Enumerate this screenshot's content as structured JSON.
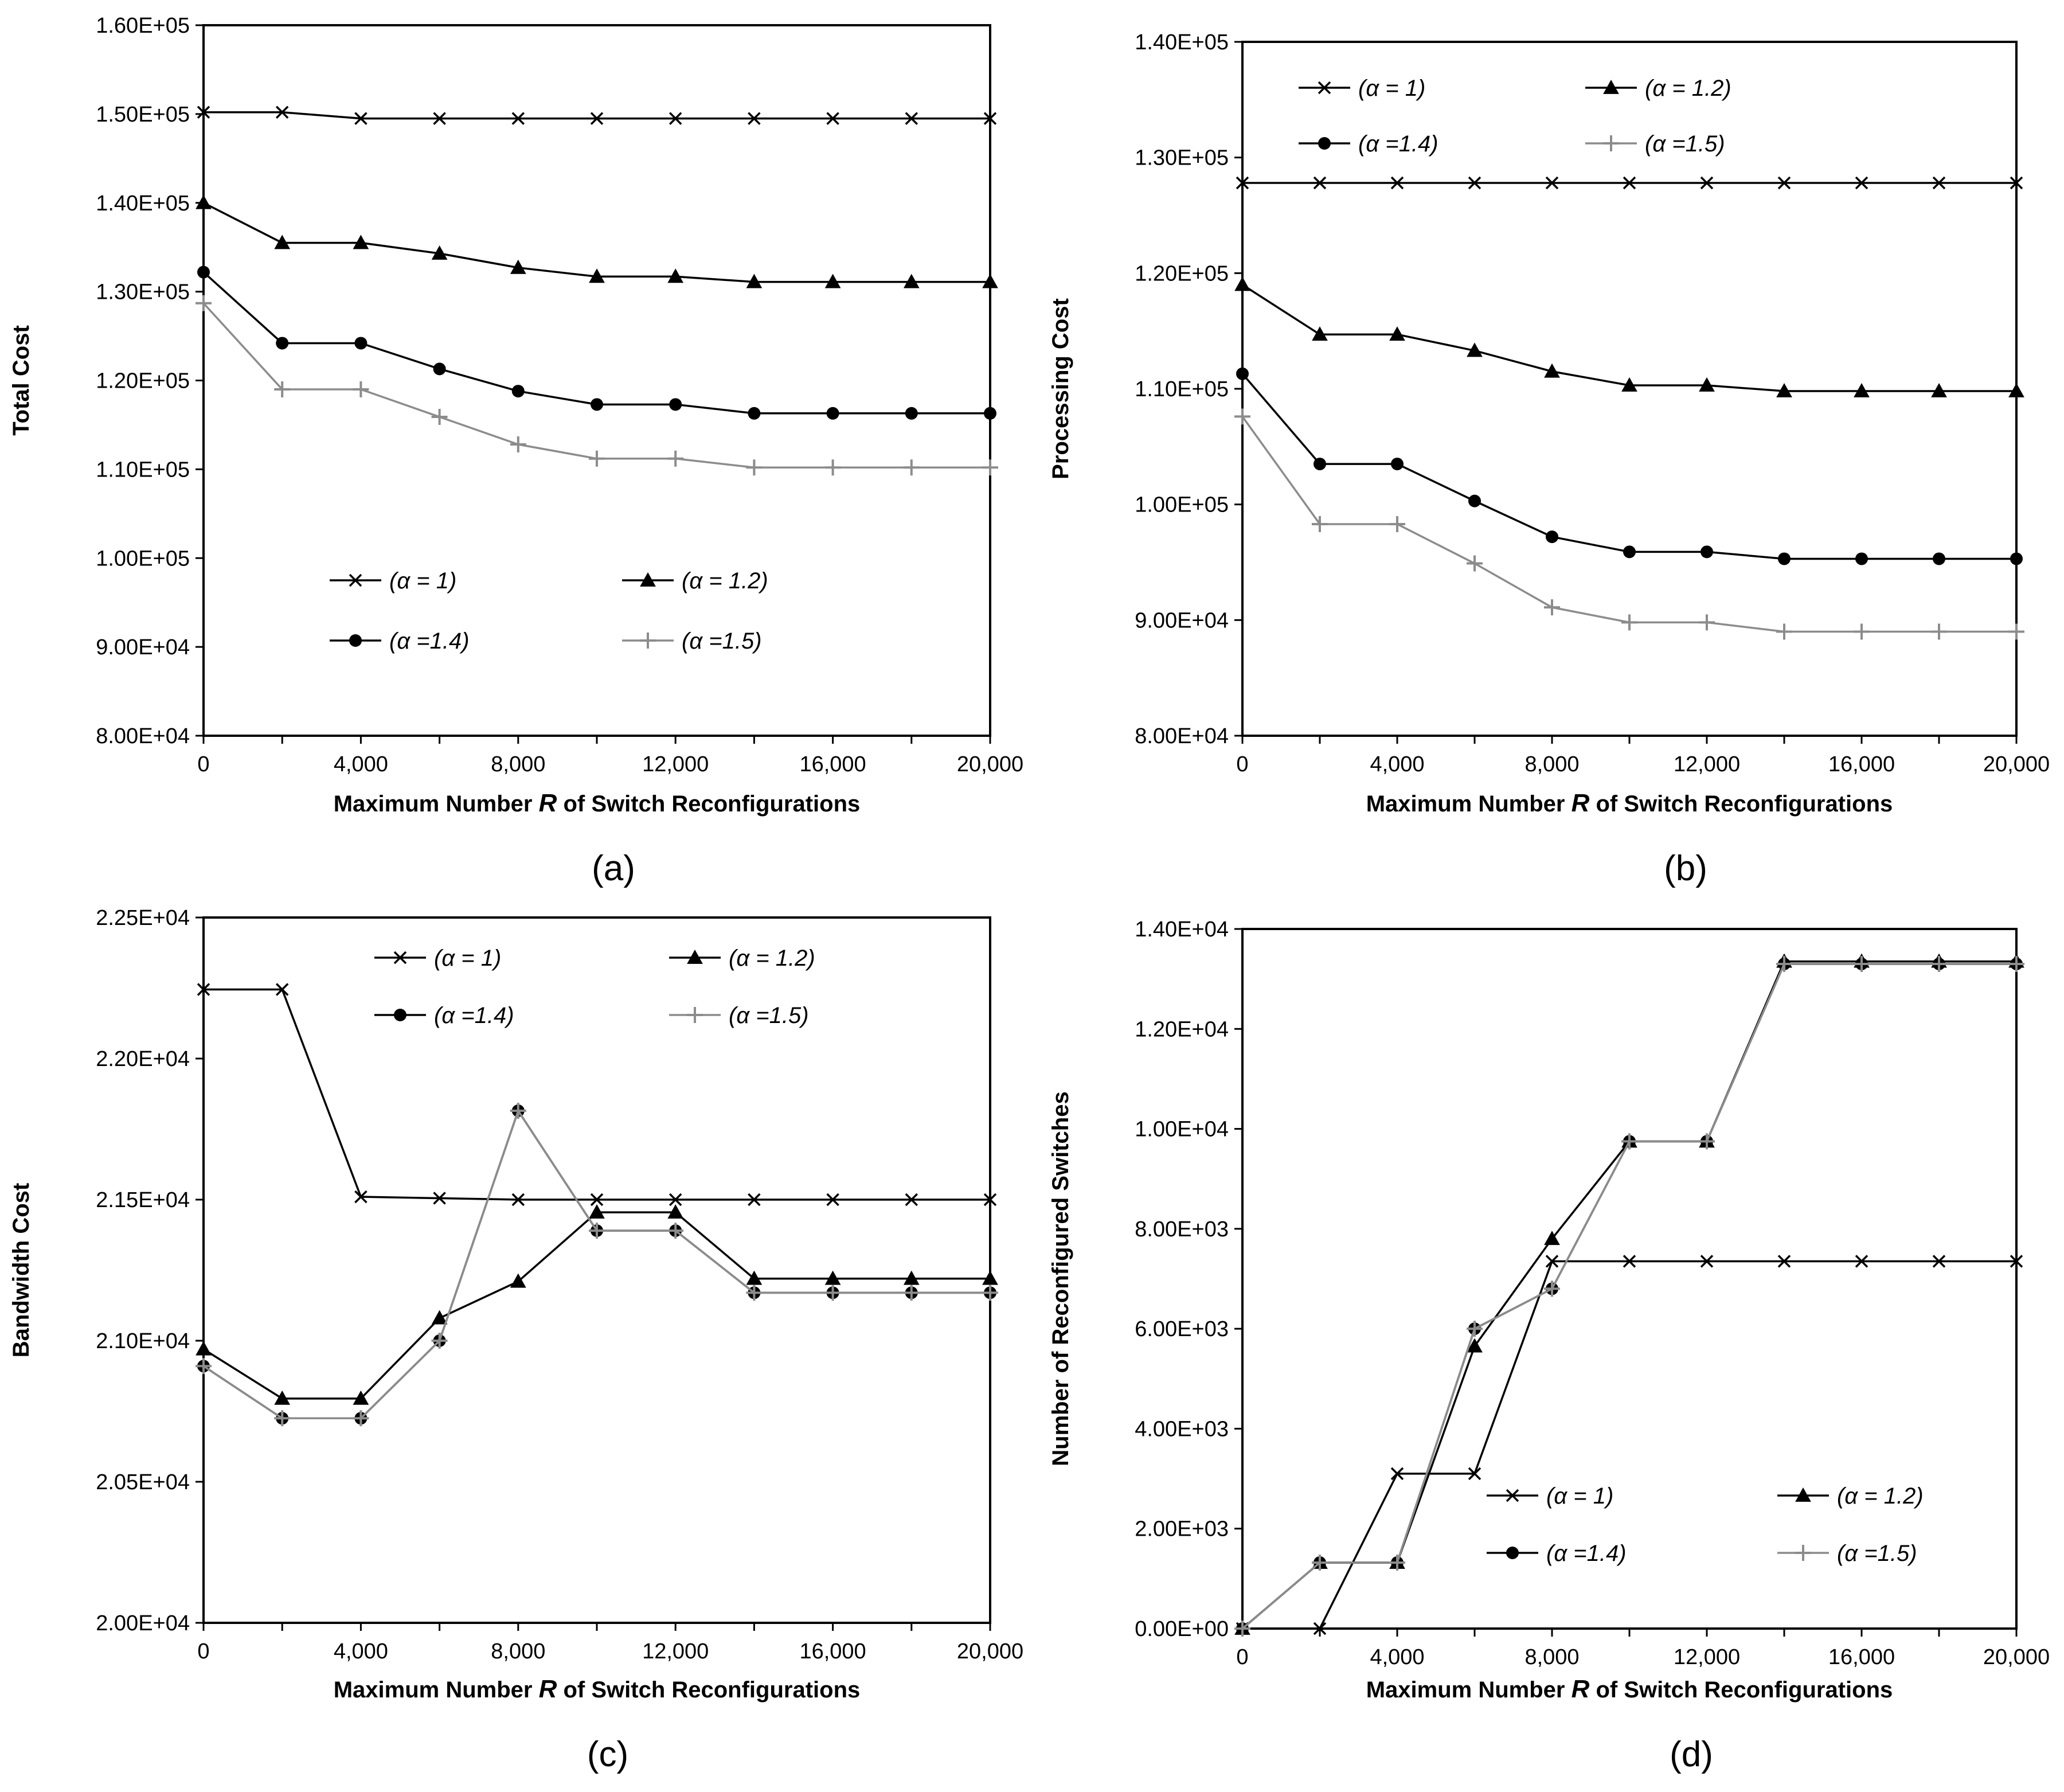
{
  "chart_data": [
    {
      "type": "line",
      "panel_label": "(a)",
      "xlabel_parts": [
        "Maximum Number ",
        "R",
        " of Switch Reconfigurations"
      ],
      "ylabel": "Total Cost",
      "x": [
        0,
        2000,
        4000,
        6000,
        8000,
        10000,
        12000,
        14000,
        16000,
        18000,
        20000
      ],
      "xticks": [
        0,
        4000,
        8000,
        12000,
        16000,
        20000
      ],
      "xtick_labels": [
        "0",
        "4,000",
        "8,000",
        "12,000",
        "16,000",
        "20,000"
      ],
      "xlim": [
        0,
        20000
      ],
      "ylim": [
        80000,
        160000
      ],
      "yticks": [
        80000,
        90000,
        100000,
        110000,
        120000,
        130000,
        140000,
        150000,
        160000
      ],
      "ytick_labels": [
        "8.00E+04",
        "9.00E+04",
        "1.00E+05",
        "1.10E+05",
        "1.20E+05",
        "1.30E+05",
        "1.40E+05",
        "1.50E+05",
        "1.60E+05"
      ],
      "legend_position": "lower-middle",
      "series": [
        {
          "name": "(α = 1)",
          "marker": "x",
          "color": "#000000",
          "values": [
            150200,
            150200,
            149500,
            149500,
            149500,
            149500,
            149500,
            149500,
            149500,
            149500,
            149500
          ]
        },
        {
          "name": "(α = 1.2)",
          "marker": "triangle",
          "color": "#000000",
          "values": [
            140000,
            135500,
            135500,
            134300,
            132700,
            131700,
            131700,
            131100,
            131100,
            131100,
            131100
          ]
        },
        {
          "name": "(α =1.4)",
          "marker": "circle",
          "color": "#000000",
          "values": [
            132200,
            124200,
            124200,
            121300,
            118800,
            117300,
            117300,
            116300,
            116300,
            116300,
            116300
          ]
        },
        {
          "name": "(α =1.5)",
          "marker": "plus",
          "color": "#8c8c8c",
          "values": [
            128700,
            119000,
            119000,
            115900,
            112800,
            111200,
            111200,
            110200,
            110200,
            110200,
            110200
          ]
        }
      ]
    },
    {
      "type": "line",
      "panel_label": "(b)",
      "xlabel_parts": [
        "Maximum Number ",
        "R",
        " of Switch Reconfigurations"
      ],
      "ylabel": "Processing Cost",
      "x": [
        0,
        2000,
        4000,
        6000,
        8000,
        10000,
        12000,
        14000,
        16000,
        18000,
        20000
      ],
      "xticks": [
        0,
        4000,
        8000,
        12000,
        16000,
        20000
      ],
      "xtick_labels": [
        "0",
        "4,000",
        "8,000",
        "12,000",
        "16,000",
        "20,000"
      ],
      "xlim": [
        0,
        20000
      ],
      "ylim": [
        80000,
        140000
      ],
      "yticks": [
        80000,
        90000,
        100000,
        110000,
        120000,
        130000,
        140000
      ],
      "ytick_labels": [
        "8.00E+04",
        "9.00E+04",
        "1.00E+05",
        "1.10E+05",
        "1.20E+05",
        "1.30E+05",
        "1.40E+05"
      ],
      "legend_position": "top",
      "series": [
        {
          "name": "(α = 1)",
          "marker": "x",
          "color": "#000000",
          "values": [
            127800,
            127800,
            127800,
            127800,
            127800,
            127800,
            127800,
            127800,
            127800,
            127800,
            127800
          ]
        },
        {
          "name": "(α = 1.2)",
          "marker": "triangle",
          "color": "#000000",
          "values": [
            119000,
            114700,
            114700,
            113300,
            111500,
            110300,
            110300,
            109800,
            109800,
            109800,
            109800
          ]
        },
        {
          "name": "(α =1.4)",
          "marker": "circle",
          "color": "#000000",
          "values": [
            111300,
            103500,
            103500,
            100300,
            97200,
            95900,
            95900,
            95300,
            95300,
            95300,
            95300
          ]
        },
        {
          "name": "(α =1.5)",
          "marker": "plus",
          "color": "#8c8c8c",
          "values": [
            107600,
            98300,
            98300,
            94900,
            91100,
            89800,
            89800,
            89000,
            89000,
            89000,
            89000
          ]
        }
      ]
    },
    {
      "type": "line",
      "panel_label": "(c)",
      "xlabel_parts": [
        "Maximum Number ",
        "R",
        " of Switch Reconfigurations"
      ],
      "ylabel": "Bandwidth Cost",
      "x": [
        0,
        2000,
        4000,
        6000,
        8000,
        10000,
        12000,
        14000,
        16000,
        18000,
        20000
      ],
      "xticks": [
        0,
        4000,
        8000,
        12000,
        16000,
        20000
      ],
      "xtick_labels": [
        "0",
        "4,000",
        "8,000",
        "12,000",
        "16,000",
        "20,000"
      ],
      "xlim": [
        0,
        20000
      ],
      "ylim": [
        20000,
        22500
      ],
      "yticks": [
        20000,
        20500,
        21000,
        21500,
        22000,
        22500
      ],
      "ytick_labels": [
        "2.00E+04",
        "2.05E+04",
        "2.10E+04",
        "2.15E+04",
        "2.20E+04",
        "2.25E+04"
      ],
      "legend_position": "top",
      "series": [
        {
          "name": "(α = 1)",
          "marker": "x",
          "color": "#000000",
          "values": [
            22245,
            22245,
            21510,
            21505,
            21500,
            21500,
            21500,
            21500,
            21500,
            21500,
            21500
          ]
        },
        {
          "name": "(α = 1.2)",
          "marker": "triangle",
          "color": "#000000",
          "values": [
            20970,
            20795,
            20795,
            21080,
            21210,
            21455,
            21455,
            21220,
            21220,
            21220,
            21220
          ]
        },
        {
          "name": "(α =1.4)",
          "marker": "circle",
          "color": "#000000",
          "values": [
            20910,
            20725,
            20725,
            21000,
            21815,
            21390,
            21390,
            21170,
            21170,
            21170,
            21170
          ]
        },
        {
          "name": "(α =1.5)",
          "marker": "plus",
          "color": "#8c8c8c",
          "values": [
            20910,
            20725,
            20725,
            21000,
            21815,
            21390,
            21390,
            21170,
            21170,
            21170,
            21170
          ]
        }
      ]
    },
    {
      "type": "line",
      "panel_label": "(d)",
      "xlabel_parts": [
        "Maximum Number ",
        "R",
        " of Switch Reconfigurations"
      ],
      "ylabel": "Number of Reconfigured Switches",
      "x": [
        0,
        2000,
        4000,
        6000,
        8000,
        10000,
        12000,
        14000,
        16000,
        18000,
        20000
      ],
      "xticks": [
        0,
        4000,
        8000,
        12000,
        16000,
        20000
      ],
      "xtick_labels": [
        "0",
        "4,000",
        "8,000",
        "12,000",
        "16,000",
        "20,000"
      ],
      "xlim": [
        0,
        20000
      ],
      "ylim": [
        0,
        14000
      ],
      "yticks": [
        0,
        2000,
        4000,
        6000,
        8000,
        10000,
        12000,
        14000
      ],
      "ytick_labels": [
        "0.00E+00",
        "2.00E+03",
        "4.00E+03",
        "6.00E+03",
        "8.00E+03",
        "1.00E+04",
        "1.20E+04",
        "1.40E+04"
      ],
      "legend_position": "bottom-right",
      "series": [
        {
          "name": "(α = 1)",
          "marker": "x",
          "color": "#000000",
          "values": [
            0,
            0,
            3100,
            3100,
            7350,
            7350,
            7350,
            7350,
            7350,
            7350,
            7350
          ]
        },
        {
          "name": "(α = 1.2)",
          "marker": "triangle",
          "color": "#000000",
          "values": [
            0,
            1320,
            1320,
            5650,
            7800,
            9750,
            9750,
            13350,
            13350,
            13350,
            13350
          ]
        },
        {
          "name": "(α =1.4)",
          "marker": "circle",
          "color": "#000000",
          "values": [
            0,
            1320,
            1320,
            6000,
            6800,
            9750,
            9750,
            13300,
            13300,
            13300,
            13300
          ]
        },
        {
          "name": "(α =1.5)",
          "marker": "plus",
          "color": "#8c8c8c",
          "values": [
            0,
            1320,
            1320,
            6000,
            6800,
            9750,
            9750,
            13300,
            13300,
            13300,
            13300
          ]
        }
      ]
    }
  ]
}
